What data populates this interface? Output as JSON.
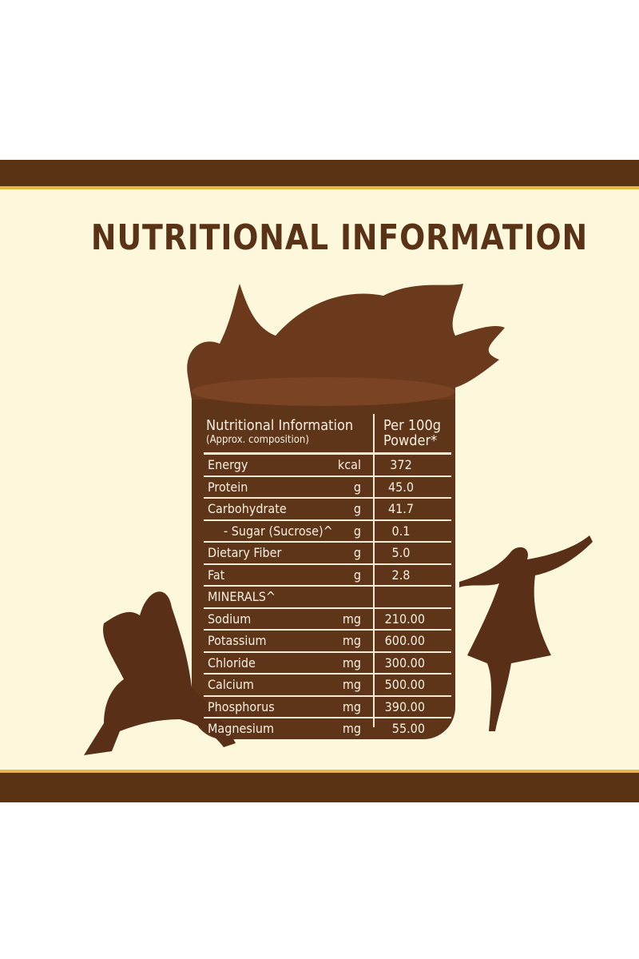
{
  "title": "NUTRITIONAL INFORMATION",
  "table": {
    "header_left": "Nutritional Information",
    "header_left_sub": "(Approx. composition)",
    "header_right_1": "Per 100g",
    "header_right_2": "Powder*",
    "rows": [
      {
        "name": "Energy",
        "unit": "kcal",
        "value": "372"
      },
      {
        "name": "Protein",
        "unit": "g",
        "value": "45.0"
      },
      {
        "name": "Carbohydrate",
        "unit": "g",
        "value": "41.7"
      },
      {
        "name": "- Sugar (Sucrose)^",
        "unit": "g",
        "value": "0.1"
      },
      {
        "name": "Dietary Fiber",
        "unit": "g",
        "value": "5.0"
      },
      {
        "name": "Fat",
        "unit": "g",
        "value": "2.8"
      }
    ],
    "minerals_label": "MINERALS^",
    "minerals": [
      {
        "name": "Sodium",
        "unit": "mg",
        "value": "210.00"
      },
      {
        "name": "Potassium",
        "unit": "mg",
        "value": "600.00"
      },
      {
        "name": "Chloride",
        "unit": "mg",
        "value": "300.00"
      },
      {
        "name": "Calcium",
        "unit": "mg",
        "value": "500.00"
      },
      {
        "name": "Phosphorus",
        "unit": "mg",
        "value": "390.00"
      },
      {
        "name": "Magnesium",
        "unit": "mg",
        "value": "55.00"
      }
    ]
  },
  "colors": {
    "brown": "#5a3315",
    "cream": "#fdf7dc",
    "gold": "#e6b84a",
    "cup": "#5e3519"
  }
}
